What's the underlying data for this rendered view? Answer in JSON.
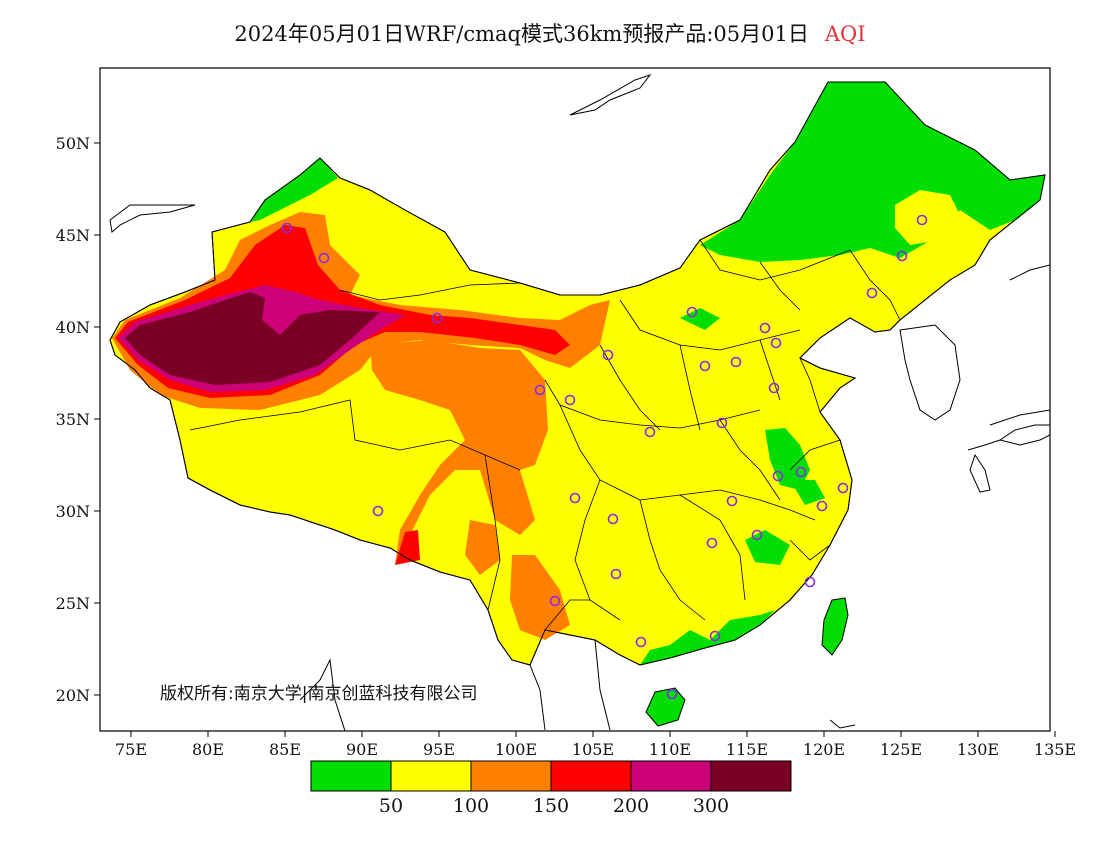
{
  "title": {
    "main": "2024年05月01日WRF/cmaq模式36km预报产品:05月01日",
    "variable": "AQI"
  },
  "copyright": "版权所有:南京大学|南京创蓝科技有限公司",
  "axes": {
    "lon_ticks": [
      "75E",
      "80E",
      "85E",
      "90E",
      "95E",
      "100E",
      "105E",
      "110E",
      "115E",
      "120E",
      "125E",
      "130E",
      "135E"
    ],
    "lat_ticks": [
      "20N",
      "25N",
      "30N",
      "35N",
      "40N",
      "45N",
      "50N"
    ]
  },
  "colors": {
    "good": "#00dd00",
    "moderate": "#ffff00",
    "sensitive": "#ff8000",
    "unhealthy": "#ff0000",
    "very_unhealthy": "#cc0077",
    "hazardous": "#7a0026",
    "station_marker": "#8a2be2"
  },
  "legend": {
    "colors": [
      "#00dd00",
      "#ffff00",
      "#ff8000",
      "#ff0000",
      "#cc0077",
      "#7a0026"
    ],
    "labels": [
      "50",
      "100",
      "150",
      "200",
      "300"
    ]
  }
}
